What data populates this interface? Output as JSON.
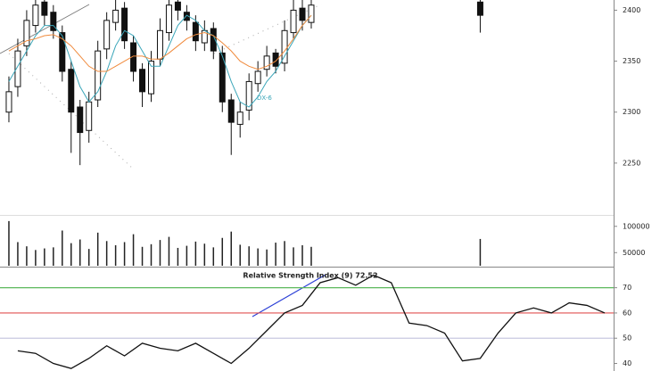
{
  "chart_data": [
    {
      "type": "candlestick",
      "x": [
        0,
        1,
        2,
        3,
        4,
        5,
        6,
        7,
        8,
        9,
        10,
        11,
        12,
        13,
        14,
        15,
        16,
        17,
        18,
        19,
        20,
        21,
        22,
        23,
        24,
        25,
        26,
        27,
        28,
        29,
        30,
        31,
        32,
        33,
        34,
        53
      ],
      "open": [
        2300,
        2325,
        2365,
        2385,
        2408,
        2398,
        2378,
        2342,
        2305,
        2282,
        2312,
        2362,
        2388,
        2402,
        2368,
        2342,
        2318,
        2352,
        2378,
        2408,
        2398,
        2388,
        2368,
        2382,
        2358,
        2312,
        2288,
        2302,
        2328,
        2342,
        2358,
        2348,
        2378,
        2402,
        2388,
        2408
      ],
      "high": [
        2335,
        2372,
        2400,
        2418,
        2412,
        2405,
        2385,
        2350,
        2312,
        2320,
        2370,
        2398,
        2412,
        2408,
        2375,
        2348,
        2360,
        2392,
        2416,
        2412,
        2405,
        2395,
        2390,
        2388,
        2365,
        2318,
        2310,
        2338,
        2350,
        2365,
        2362,
        2390,
        2412,
        2410,
        2415,
        2412
      ],
      "low": [
        2290,
        2315,
        2355,
        2378,
        2385,
        2372,
        2330,
        2260,
        2248,
        2270,
        2305,
        2352,
        2380,
        2362,
        2330,
        2305,
        2310,
        2345,
        2370,
        2390,
        2380,
        2360,
        2360,
        2352,
        2300,
        2258,
        2275,
        2292,
        2320,
        2335,
        2338,
        2340,
        2372,
        2380,
        2382,
        2378
      ],
      "close": [
        2320,
        2360,
        2390,
        2405,
        2395,
        2380,
        2340,
        2300,
        2280,
        2310,
        2360,
        2390,
        2400,
        2370,
        2340,
        2320,
        2350,
        2380,
        2405,
        2400,
        2390,
        2370,
        2380,
        2360,
        2310,
        2290,
        2300,
        2330,
        2340,
        2355,
        2345,
        2380,
        2400,
        2390,
        2405,
        2395
      ],
      "series": [
        {
          "color": "#3aa6b9",
          "values": [
            2330,
            2345,
            2360,
            2375,
            2385,
            2385,
            2375,
            2350,
            2325,
            2310,
            2320,
            2340,
            2365,
            2380,
            2375,
            2360,
            2345,
            2345,
            2365,
            2385,
            2395,
            2390,
            2380,
            2375,
            2355,
            2330,
            2310,
            2305,
            2315,
            2330,
            2340,
            2355,
            2370,
            2385,
            2395,
            null
          ]
        },
        {
          "color": "#f08a3c",
          "values": [
            2360,
            2365,
            2370,
            2372,
            2375,
            2376,
            2372,
            2365,
            2355,
            2345,
            2340,
            2340,
            2345,
            2350,
            2355,
            2355,
            2352,
            2352,
            2358,
            2365,
            2372,
            2376,
            2378,
            2375,
            2368,
            2360,
            2350,
            2345,
            2342,
            2345,
            2350,
            2360,
            2372,
            2385,
            2395,
            null
          ]
        }
      ],
      "annotation": "DX-6",
      "xlim": [
        -1,
        68
      ],
      "ylim": [
        2200,
        2410
      ],
      "yticks": [
        2250,
        2300,
        2350,
        2400
      ]
    },
    {
      "type": "bar",
      "x": [
        0,
        1,
        2,
        3,
        4,
        5,
        6,
        7,
        8,
        9,
        10,
        11,
        12,
        13,
        14,
        15,
        16,
        17,
        18,
        19,
        20,
        21,
        22,
        23,
        24,
        25,
        26,
        27,
        28,
        29,
        30,
        31,
        32,
        33,
        34,
        53
      ],
      "values": [
        110000,
        70000,
        62000,
        55000,
        58000,
        60000,
        92000,
        68000,
        75000,
        57000,
        88000,
        72000,
        64000,
        70000,
        85000,
        61000,
        66000,
        74000,
        80000,
        59000,
        63000,
        71000,
        67000,
        60000,
        78000,
        90000,
        65000,
        62000,
        58000,
        56000,
        69000,
        72000,
        60000,
        64000,
        61000,
        76000
      ],
      "color": "#222222",
      "xlim": [
        -1,
        68
      ],
      "ylim": [
        25000,
        120000
      ],
      "yticks": [
        {
          "value": 50000,
          "label": "50000"
        },
        {
          "value": 100000,
          "label": "100000"
        }
      ]
    },
    {
      "type": "line",
      "title": "Relative Strength Index (9) 72.52",
      "x": [
        1,
        3,
        5,
        7,
        9,
        11,
        13,
        15,
        17,
        19,
        21,
        23,
        25,
        27,
        29,
        31,
        33,
        35,
        37,
        39,
        41,
        43,
        45,
        47,
        49,
        51,
        53,
        55,
        57,
        59,
        61,
        63,
        65,
        67
      ],
      "values": [
        45,
        44,
        40,
        38,
        42,
        47,
        43,
        48,
        46,
        45,
        48,
        44,
        40,
        46,
        53,
        60,
        63,
        72,
        74,
        71,
        75,
        72,
        56,
        55,
        52,
        41,
        42,
        52,
        60,
        62,
        60,
        64,
        63,
        60
      ],
      "color": "#111111",
      "levels": [
        {
          "value": 70,
          "color": "#5cb85c"
        },
        {
          "value": 60,
          "color": "#e05050"
        },
        {
          "value": 50,
          "color": "#c8c8e0"
        }
      ],
      "xlim": [
        -1,
        68
      ],
      "ylim": [
        37,
        78
      ],
      "yticks": [
        40,
        50,
        60,
        70
      ]
    }
  ]
}
